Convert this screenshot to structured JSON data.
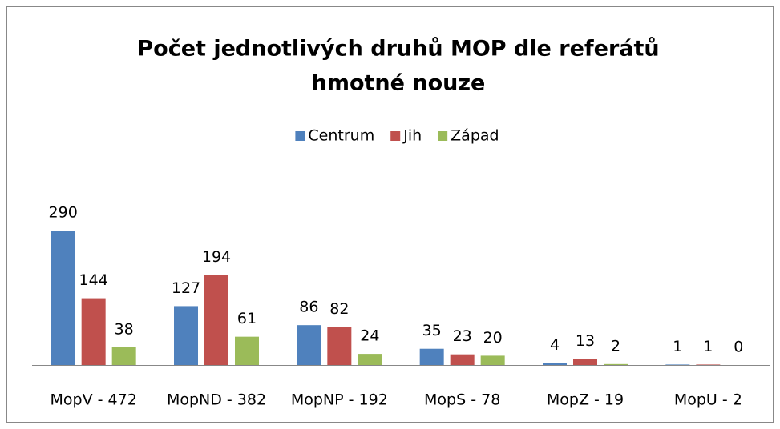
{
  "chart_data": {
    "type": "bar",
    "title": [
      "Počet jednotlivých druhů MOP dle referátů",
      "hmotné nouze"
    ],
    "categories": [
      "MopV - 472",
      "MopND - 382",
      "MopNP - 192",
      "MopS - 78",
      "MopZ - 19",
      "MopU - 2"
    ],
    "series": [
      {
        "name": "Centrum",
        "color": "#4f81bd",
        "values": [
          290,
          127,
          86,
          35,
          4,
          1
        ]
      },
      {
        "name": "Jih",
        "color": "#c0504d",
        "values": [
          144,
          194,
          82,
          23,
          13,
          1
        ]
      },
      {
        "name": "Západ",
        "color": "#9bbb59",
        "values": [
          38,
          61,
          24,
          20,
          2,
          0
        ]
      }
    ],
    "legend": "top"
  }
}
